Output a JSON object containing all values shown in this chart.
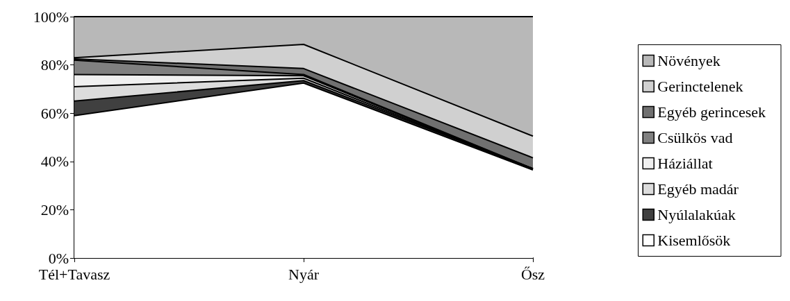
{
  "chart_data": {
    "type": "area",
    "stacked": true,
    "categories": [
      "Tél+Tavasz",
      "Nyár",
      "Ősz"
    ],
    "series": [
      {
        "name": "Kisemlősök",
        "color": "#ffffff",
        "values": [
          59,
          72.5,
          36.5
        ]
      },
      {
        "name": "Nyúlalakúak",
        "color": "#404040",
        "values": [
          6,
          1,
          0.5
        ]
      },
      {
        "name": "Egyéb madár",
        "color": "#dcdcdc",
        "values": [
          6,
          1,
          0
        ]
      },
      {
        "name": "Háziállat",
        "color": "#f0f0f0",
        "values": [
          5,
          1,
          0
        ]
      },
      {
        "name": "Csülkös vad",
        "color": "#808080",
        "values": [
          6,
          0.5,
          0
        ]
      },
      {
        "name": "Egyéb gerincesek",
        "color": "#707070",
        "values": [
          0.5,
          2.5,
          4.5
        ]
      },
      {
        "name": "Gerinctelenek",
        "color": "#d0d0d0",
        "values": [
          0.5,
          10,
          9
        ]
      },
      {
        "name": "Növények",
        "color": "#b8b8b8",
        "values": [
          17,
          11.5,
          49.5
        ]
      }
    ],
    "ylim": [
      0,
      100
    ],
    "yticks": [
      {
        "value": 0,
        "label": "0%"
      },
      {
        "value": 20,
        "label": "20%"
      },
      {
        "value": 40,
        "label": "40%"
      },
      {
        "value": 60,
        "label": "60%"
      },
      {
        "value": 80,
        "label": "80%"
      },
      {
        "value": 100,
        "label": "100%"
      }
    ],
    "grid": false,
    "legend": "right"
  }
}
